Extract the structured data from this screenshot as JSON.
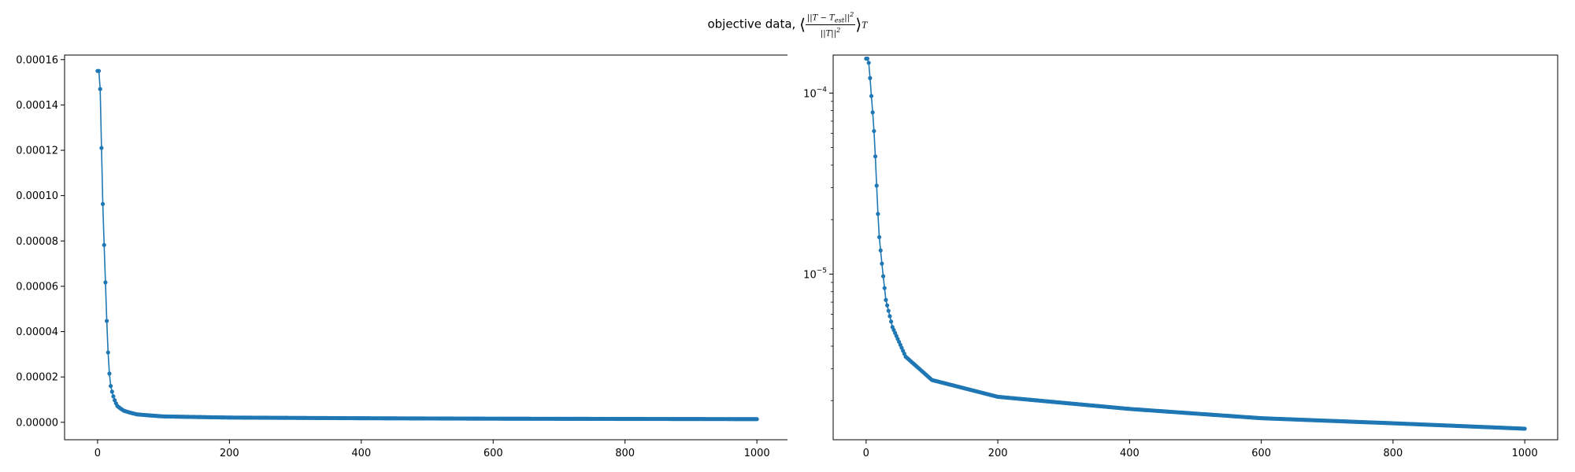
{
  "figure": {
    "title_text": "objective data,",
    "title_formula_num": "||T − T",
    "title_formula_num_sub": "est",
    "title_formula_num_tail": "||",
    "title_formula_den": "||T||",
    "title_formula_sub": "T"
  },
  "chart_data": [
    {
      "type": "line",
      "scale": "linear",
      "xlim": [
        -50,
        1050
      ],
      "ylim": [
        -7.7e-06,
        0.000162
      ],
      "xticks": [
        0,
        200,
        400,
        600,
        800,
        1000
      ],
      "xtick_labels": [
        "0",
        "200",
        "400",
        "600",
        "800",
        "1000"
      ],
      "yticks": [
        0,
        2e-05,
        4e-05,
        6e-05,
        8e-05,
        0.0001,
        0.00012,
        0.00014,
        0.00016
      ],
      "ytick_labels": [
        "0.00000",
        "0.00002",
        "0.00004",
        "0.00006",
        "0.00008",
        "0.00010",
        "0.00012",
        "0.00014",
        "0.00016"
      ],
      "series_color": "#1f77b4",
      "markers": "point",
      "x_range": [
        0,
        1000
      ],
      "key_points": [
        [
          0,
          0.000155
        ],
        [
          2,
          0.000155
        ],
        [
          4,
          0.000147
        ],
        [
          6,
          0.000121
        ],
        [
          8,
          9.63e-05
        ],
        [
          10,
          7.82e-05
        ],
        [
          12,
          6.17e-05
        ],
        [
          14,
          4.47e-05
        ],
        [
          16,
          3.08e-05
        ],
        [
          18,
          2.15e-05
        ],
        [
          20,
          1.6e-05
        ],
        [
          25,
          1.05e-05
        ],
        [
          30,
          7.2e-06
        ],
        [
          40,
          5.1e-06
        ],
        [
          60,
          3.5e-06
        ],
        [
          100,
          2.6e-06
        ],
        [
          200,
          2.1e-06
        ],
        [
          400,
          1.8e-06
        ],
        [
          600,
          1.6e-06
        ],
        [
          800,
          1.5e-06
        ],
        [
          1000,
          1.4e-06
        ]
      ]
    },
    {
      "type": "line",
      "scale": "log",
      "xlim": [
        -50,
        1050
      ],
      "ylim_log10": [
        -5.915,
        -3.79
      ],
      "xticks": [
        0,
        200,
        400,
        600,
        800,
        1000
      ],
      "xtick_labels": [
        "0",
        "200",
        "400",
        "600",
        "800",
        "1000"
      ],
      "yticks_major": [
        {
          "value": 0.0001,
          "base": "10",
          "exp": "−4"
        },
        {
          "value": 1e-05,
          "base": "10",
          "exp": "−5"
        }
      ],
      "series_color": "#1f77b4",
      "markers": "point",
      "x_range": [
        0,
        1000
      ],
      "key_points": [
        [
          0,
          0.000155
        ],
        [
          2,
          0.000155
        ],
        [
          4,
          0.000147
        ],
        [
          6,
          0.000121
        ],
        [
          8,
          9.63e-05
        ],
        [
          10,
          7.82e-05
        ],
        [
          12,
          6.17e-05
        ],
        [
          14,
          4.47e-05
        ],
        [
          16,
          3.08e-05
        ],
        [
          18,
          2.15e-05
        ],
        [
          20,
          1.6e-05
        ],
        [
          25,
          1.05e-05
        ],
        [
          30,
          7.2e-06
        ],
        [
          40,
          5.1e-06
        ],
        [
          60,
          3.5e-06
        ],
        [
          100,
          2.6e-06
        ],
        [
          200,
          2.1e-06
        ],
        [
          400,
          1.8e-06
        ],
        [
          600,
          1.6e-06
        ],
        [
          800,
          1.5e-06
        ],
        [
          1000,
          1.4e-06
        ]
      ]
    }
  ]
}
